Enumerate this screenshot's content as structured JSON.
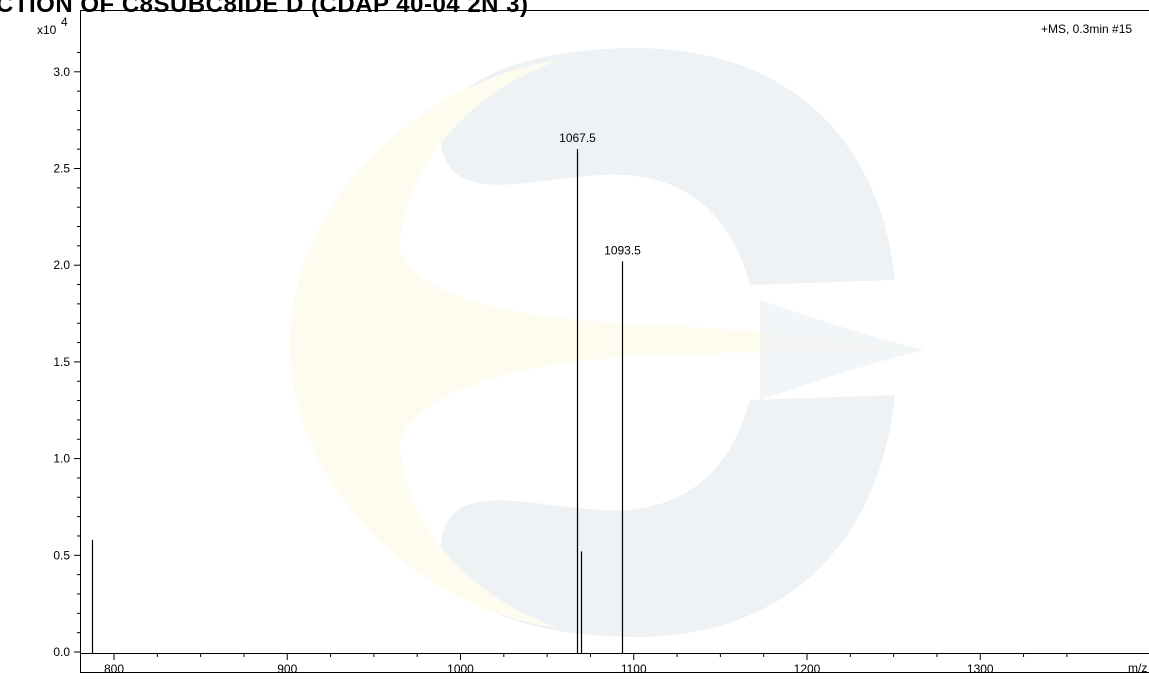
{
  "title": "CTION OF C8SUBC8IDE D (CDAP 40-04 2N 3)",
  "chart_data": {
    "type": "bar",
    "title": "CTION OF C8SUBC8IDE D (CDAP 40-04 2N 3)",
    "scan_info": "+MS, 0.3min #15",
    "y_exponent_base": "x10",
    "y_exponent_power": "4",
    "xlabel": "m/z",
    "ylabel": "",
    "xlim": [
      786,
      1349
    ],
    "ylim": [
      0,
      3.12
    ],
    "x_ticks": [
      "800",
      "900",
      "1000",
      "1100",
      "1200",
      "1300"
    ],
    "y_ticks": [
      "0.0",
      "0.5",
      "1.0",
      "1.5",
      "2.0",
      "2.5",
      "3.0"
    ],
    "peaks": [
      {
        "mz": 787.5,
        "intensity": 0.58,
        "label": ""
      },
      {
        "mz": 1067.5,
        "intensity": 2.6,
        "label": "1067.5"
      },
      {
        "mz": 1069.5,
        "intensity": 0.52,
        "label": ""
      },
      {
        "mz": 1093.5,
        "intensity": 2.02,
        "label": "1093.5"
      }
    ],
    "grid": false,
    "legend": "none"
  }
}
